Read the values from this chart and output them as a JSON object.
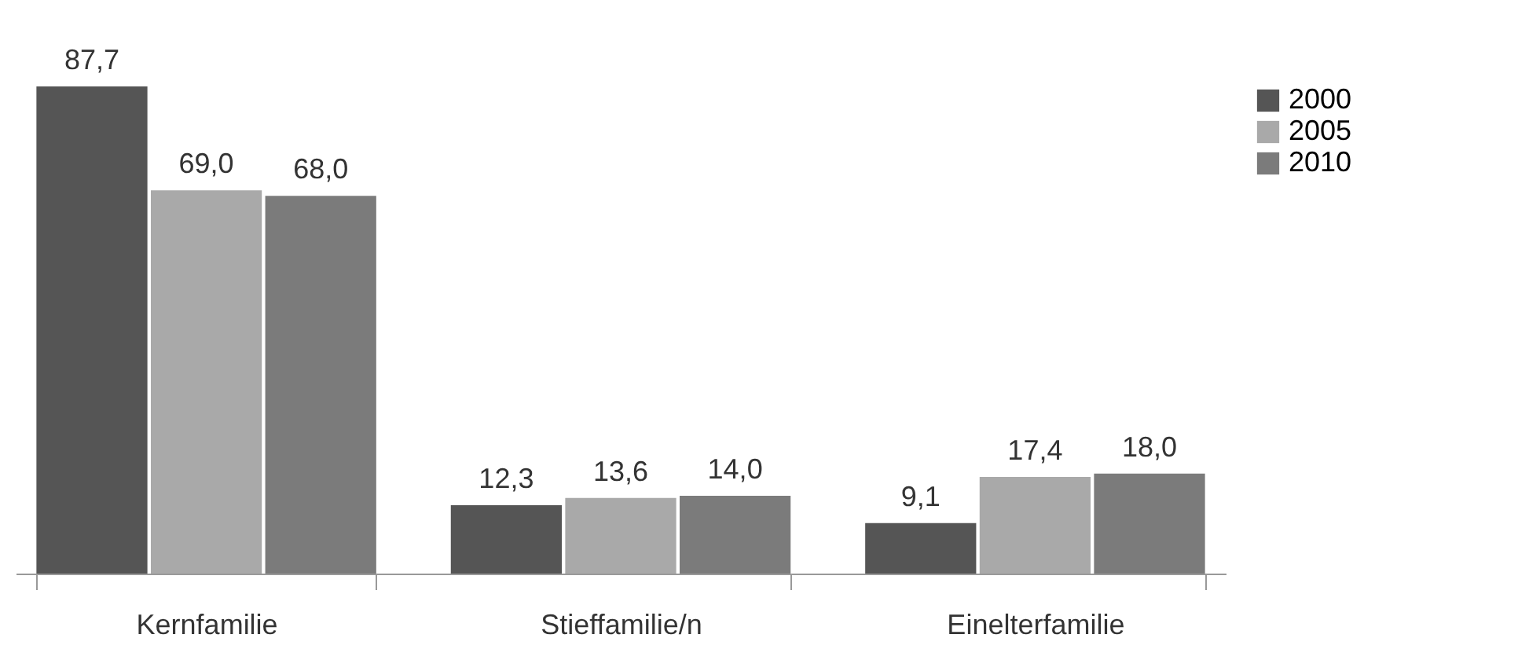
{
  "chart_data": {
    "type": "bar",
    "categories": [
      "Kernfamilie",
      "Stieffamilie/n",
      "Einelterfamilie"
    ],
    "series": [
      {
        "name": "2000",
        "color": "#555555",
        "values": [
          87.7,
          12.3,
          9.1
        ],
        "value_labels": [
          "87,7",
          "12,3",
          "9,1"
        ]
      },
      {
        "name": "2005",
        "color": "#a9a9a9",
        "values": [
          69.0,
          13.6,
          17.4
        ],
        "value_labels": [
          "69,0",
          "13,6",
          "17,4"
        ]
      },
      {
        "name": "2010",
        "color": "#7b7b7b",
        "values": [
          68.0,
          14.0,
          18.0
        ],
        "value_labels": [
          "68,0",
          "14,0",
          "18,0"
        ]
      }
    ],
    "legend": "right",
    "grid": false
  }
}
